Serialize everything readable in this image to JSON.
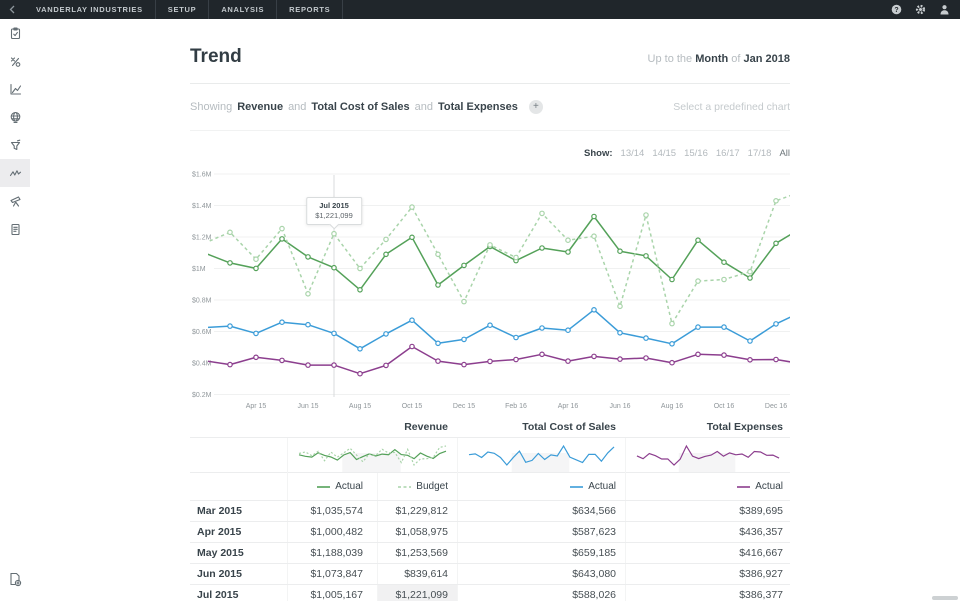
{
  "topbar": {
    "back_icon": "chevron-left",
    "brand": "VANDERLAY INDUSTRIES",
    "nav": [
      "SETUP",
      "ANALYSIS",
      "REPORTS"
    ],
    "icons": [
      "help-icon",
      "settings-icon",
      "user-icon"
    ]
  },
  "sidebar": {
    "items": [
      "clipboard-icon",
      "variance-icon",
      "chart-axes-icon",
      "globe-icon",
      "funnel-icon",
      "trend-icon",
      "telescope-icon",
      "report-icon"
    ],
    "selected": "trend-icon",
    "bottom_item": "export-icon"
  },
  "header": {
    "title": "Trend",
    "period_prefix": "Up to the",
    "period_unit": "Month",
    "period_of": "of",
    "period_value": "Jan 2018"
  },
  "showing": {
    "label": "Showing",
    "metrics": [
      "Revenue",
      "Total Cost of Sales",
      "Total Expenses"
    ],
    "conjunction": "and",
    "add_label": "+",
    "predefined_label": "Select a predefined chart"
  },
  "show_filter": {
    "label": "Show:",
    "options": [
      "13/14",
      "14/15",
      "15/16",
      "16/17",
      "17/18",
      "All"
    ],
    "selected": "All"
  },
  "tooltip": {
    "title": "Jul 2015",
    "value": "$1,221,099",
    "month_index": 5
  },
  "chart_data": {
    "type": "line",
    "x": [
      "Feb 15",
      "Mar 15",
      "Apr 15",
      "May 15",
      "Jun 15",
      "Jul 15",
      "Aug 15",
      "Sep 15",
      "Oct 15",
      "Nov 15",
      "Dec 15",
      "Jan 16",
      "Feb 16",
      "Mar 16",
      "Apr 16",
      "May 16",
      "Jun 16",
      "Jul 16",
      "Aug 16",
      "Sep 16",
      "Oct 16",
      "Nov 16",
      "Dec 16",
      "Jan 17"
    ],
    "x_tick_labels": [
      "Apr 15",
      "Jun 15",
      "Aug 15",
      "Oct 15",
      "Dec 15",
      "Feb 16",
      "Apr 16",
      "Jun 16",
      "Aug 16",
      "Oct 16",
      "Dec 16"
    ],
    "y_ticks": [
      "$1.6M",
      "$1.4M",
      "$1.2M",
      "$1M",
      "$0.8M",
      "$0.6M",
      "$0.4M",
      "$0.2M"
    ],
    "ylim": [
      200000,
      1600000
    ],
    "grid": true,
    "series": [
      {
        "name": "Revenue Actual",
        "legend": "Actual",
        "style": "solid",
        "color": "#54a159",
        "values": [
          1100000,
          1035574,
          1000482,
          1188039,
          1073847,
          1005167,
          865000,
          1090000,
          1198000,
          895000,
          1020000,
          1140000,
          1050000,
          1130000,
          1105000,
          1330000,
          1110000,
          1080000,
          930000,
          1180000,
          1040000,
          940000,
          1160000,
          1260000
        ]
      },
      {
        "name": "Revenue Budget",
        "legend": "Budget",
        "style": "dashed",
        "color": "#a9d4aa",
        "values": [
          1160000,
          1229812,
          1058975,
          1253569,
          839614,
          1221099,
          1000000,
          1185000,
          1390000,
          1090000,
          790000,
          1150000,
          1070000,
          1350000,
          1180000,
          1205000,
          760000,
          1340000,
          650000,
          920000,
          930000,
          980000,
          1430000,
          1490000
        ]
      },
      {
        "name": "Total Cost of Sales Actual",
        "legend": "Actual",
        "style": "solid",
        "color": "#3b9cd8",
        "values": [
          625000,
          634566,
          587623,
          659185,
          643080,
          588026,
          490000,
          585000,
          672000,
          525000,
          550000,
          640000,
          562000,
          622000,
          608000,
          738000,
          592000,
          558000,
          522000,
          628000,
          628000,
          540000,
          648000,
          726000
        ]
      },
      {
        "name": "Total Expenses Actual",
        "legend": "Actual",
        "style": "solid",
        "color": "#8c3e8e",
        "values": [
          415000,
          389695,
          436357,
          416667,
          386927,
          386377,
          332000,
          385000,
          505000,
          412000,
          390000,
          410000,
          422000,
          455000,
          412000,
          442000,
          425000,
          432000,
          402000,
          455000,
          450000,
          420000,
          422000,
          395000
        ]
      }
    ]
  },
  "table": {
    "groups": [
      {
        "label": "Revenue",
        "series": [
          0,
          1
        ]
      },
      {
        "label": "Total Cost of Sales",
        "series": [
          2
        ]
      },
      {
        "label": "Total Expenses",
        "series": [
          3
        ]
      }
    ],
    "rows": [
      {
        "month": "Mar 2015",
        "values": [
          "$1,035,574",
          "$1,229,812",
          "$634,566",
          "$389,695"
        ],
        "highlight": -1
      },
      {
        "month": "Apr 2015",
        "values": [
          "$1,000,482",
          "$1,058,975",
          "$587,623",
          "$436,357"
        ],
        "highlight": -1
      },
      {
        "month": "May 2015",
        "values": [
          "$1,188,039",
          "$1,253,569",
          "$659,185",
          "$416,667"
        ],
        "highlight": -1
      },
      {
        "month": "Jun 2015",
        "values": [
          "$1,073,847",
          "$839,614",
          "$643,080",
          "$386,927"
        ],
        "highlight": -1
      },
      {
        "month": "Jul 2015",
        "values": [
          "$1,005,167",
          "$1,221,099",
          "$588,026",
          "$386,377"
        ],
        "highlight": 1
      }
    ]
  }
}
